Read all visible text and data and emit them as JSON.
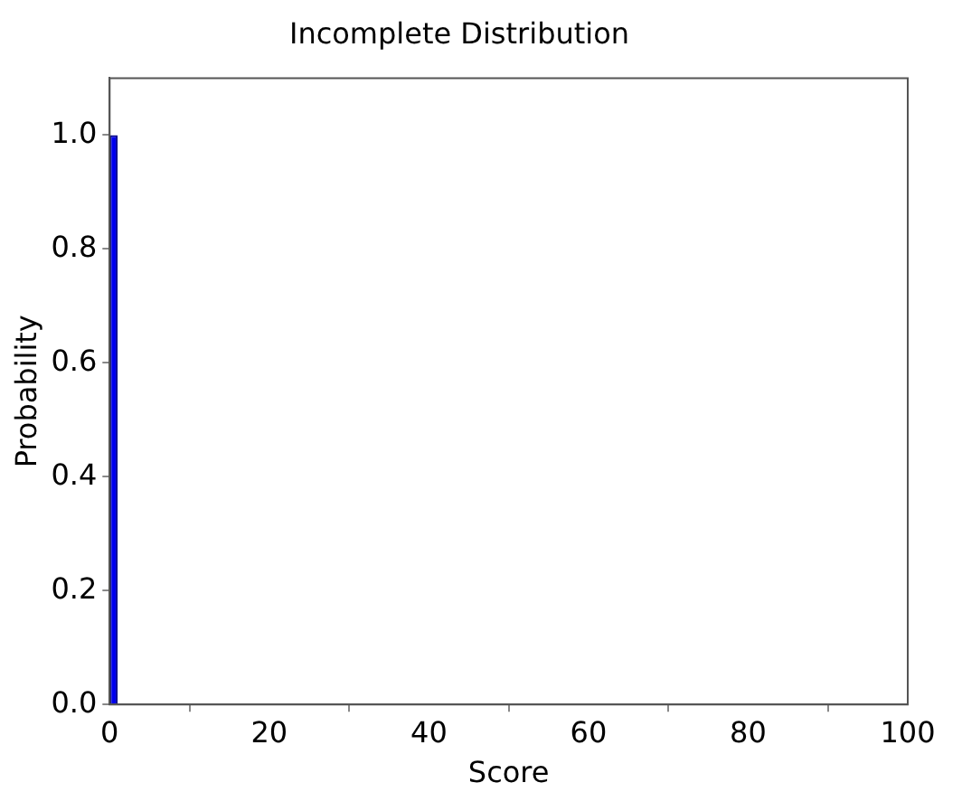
{
  "chart_data": {
    "type": "histogram",
    "title": "Incomplete Distribution",
    "xlabel": "Score",
    "ylabel": "Probability",
    "bins": [
      0,
      1
    ],
    "values": [
      1.0
    ],
    "color": "#0000ee",
    "xlim": [
      0,
      100
    ],
    "xticks": [
      0,
      20,
      40,
      60,
      80,
      100
    ],
    "ylim": [
      0,
      1.1
    ],
    "yticks": [
      {
        "value": 0,
        "label": "0.0"
      },
      0.2,
      0.4,
      0.6,
      0.8,
      {
        "value": 1,
        "label": "1.0"
      }
    ],
    "grid": false,
    "legend": false
  }
}
